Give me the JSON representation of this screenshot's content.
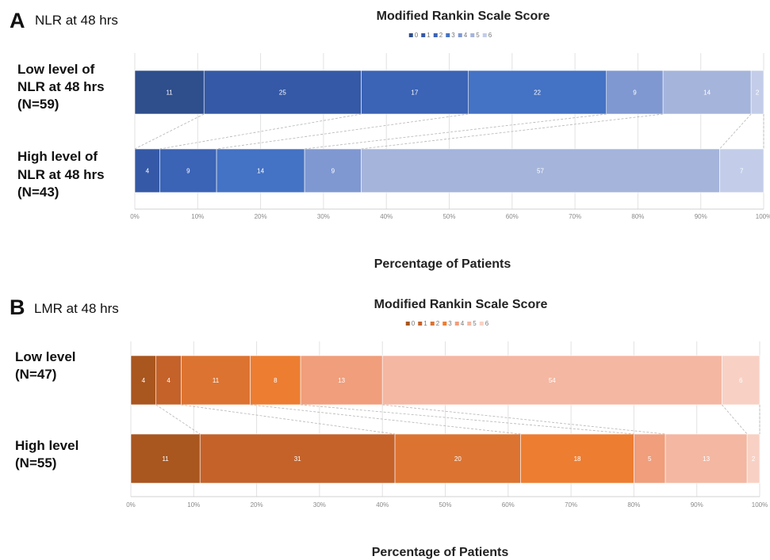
{
  "chart_data": [
    {
      "type": "bar",
      "orientation": "horizontal",
      "stacked": "percent",
      "panel": "A",
      "panel_label": "NLR at 48 hrs",
      "title": "Modified Rankin Scale Score",
      "xlabel": "Percentage of Patients",
      "ylabel": "",
      "xlim": [
        0,
        100
      ],
      "xticks": [
        "0%",
        "10%",
        "20%",
        "30%",
        "40%",
        "50%",
        "60%",
        "70%",
        "80%",
        "90%",
        "100%"
      ],
      "legend_position": "top-center",
      "grid": true,
      "categories": [
        [
          "Low level of",
          "NLR at 48 hrs",
          "(N=59)"
        ],
        [
          "High level of",
          "NLR at 48 hrs",
          "(N=43)"
        ]
      ],
      "series": [
        {
          "name": "0",
          "color": "#2e4e8c",
          "values": [
            11,
            0
          ],
          "labels": [
            "11",
            "0"
          ]
        },
        {
          "name": "1",
          "color": "#3559a6",
          "values": [
            25,
            4
          ],
          "labels": [
            "25",
            "4"
          ]
        },
        {
          "name": "2",
          "color": "#3b63b6",
          "values": [
            17,
            9
          ],
          "labels": [
            "17",
            "9"
          ]
        },
        {
          "name": "3",
          "color": "#4472c4",
          "values": [
            22,
            14
          ],
          "labels": [
            "22",
            "14"
          ]
        },
        {
          "name": "4",
          "color": "#7f98d2",
          "values": [
            9,
            9
          ],
          "labels": [
            "9",
            "9"
          ]
        },
        {
          "name": "5",
          "color": "#a5b4db",
          "values": [
            14,
            57
          ],
          "labels": [
            "14",
            "57"
          ]
        },
        {
          "name": "6",
          "color": "#c3cde9",
          "values": [
            2,
            7
          ],
          "labels": [
            "2",
            "7"
          ]
        }
      ]
    },
    {
      "type": "bar",
      "orientation": "horizontal",
      "stacked": "percent",
      "panel": "B",
      "panel_label": "LMR at 48 hrs",
      "title": "Modified Rankin Scale Score",
      "xlabel": "Percentage of Patients",
      "ylabel": "",
      "xlim": [
        0,
        100
      ],
      "xticks": [
        "0%",
        "10%",
        "20%",
        "30%",
        "40%",
        "50%",
        "60%",
        "70%",
        "80%",
        "90%",
        "100%"
      ],
      "legend_position": "top-center",
      "grid": true,
      "categories": [
        [
          "Low level",
          "(N=47)"
        ],
        [
          "High level",
          "(N=55)"
        ]
      ],
      "series": [
        {
          "name": "0",
          "color": "#a9561f",
          "values": [
            4,
            11
          ],
          "labels": [
            "4",
            "11"
          ]
        },
        {
          "name": "1",
          "color": "#c4622a",
          "values": [
            4,
            31
          ],
          "labels": [
            "4",
            "31"
          ]
        },
        {
          "name": "2",
          "color": "#dc7331",
          "values": [
            11,
            20
          ],
          "labels": [
            "11",
            "20"
          ]
        },
        {
          "name": "3",
          "color": "#ed7d31",
          "values": [
            8,
            18
          ],
          "labels": [
            "8",
            "18"
          ]
        },
        {
          "name": "4",
          "color": "#f09e7c",
          "values": [
            13,
            5
          ],
          "labels": [
            "13",
            "5"
          ]
        },
        {
          "name": "5",
          "color": "#f4b7a2",
          "values": [
            54,
            13
          ],
          "labels": [
            "54",
            "13"
          ]
        },
        {
          "name": "6",
          "color": "#f8d1c4",
          "values": [
            6,
            2
          ],
          "labels": [
            "6",
            "2"
          ]
        }
      ]
    }
  ]
}
